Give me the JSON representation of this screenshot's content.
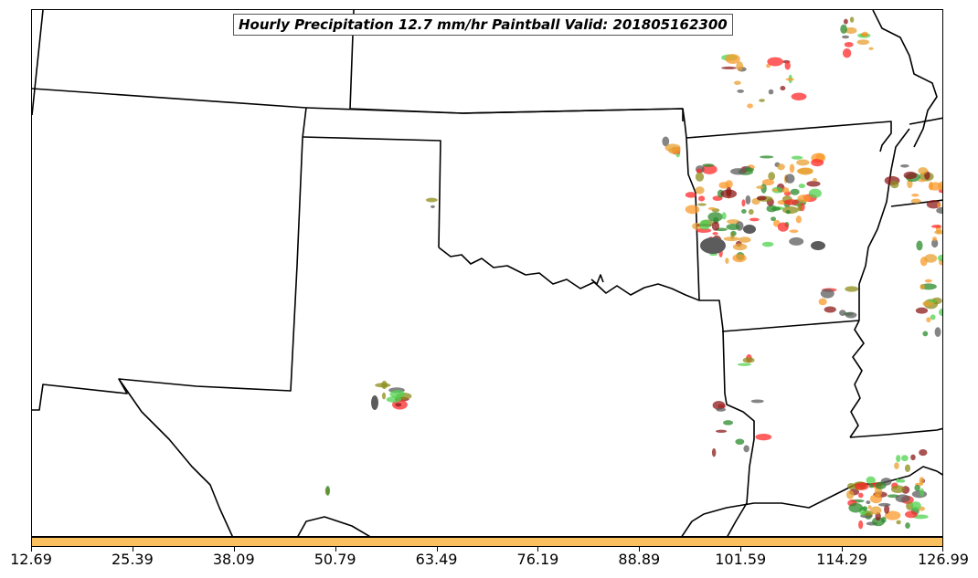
{
  "title": "Hourly Precipitation 12.7 mm/hr Paintball Valid: 201805162300",
  "colorbar": {
    "fill_color": "#fcc15e",
    "ticks": [
      "12.69",
      "25.39",
      "38.09",
      "50.79",
      "63.49",
      "76.19",
      "88.89",
      "101.59",
      "114.29",
      "126.99"
    ]
  },
  "colors": {
    "boundary": "#000000",
    "paintball_palette": [
      "#ff2a2a",
      "#fb9a29",
      "#4fd34f",
      "#2b8a2b",
      "#8c1a1a",
      "#5c5c5c",
      "#8c8c1a",
      "#e8a030"
    ]
  }
}
